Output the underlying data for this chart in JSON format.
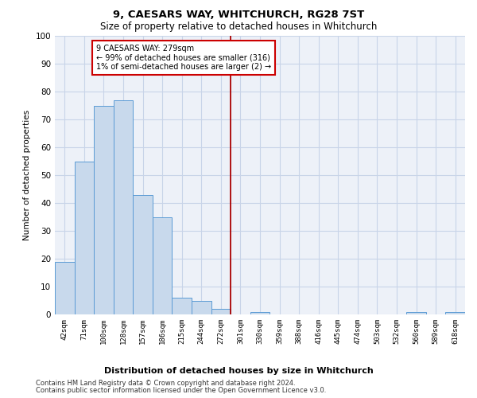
{
  "title1": "9, CAESARS WAY, WHITCHURCH, RG28 7ST",
  "title2": "Size of property relative to detached houses in Whitchurch",
  "xlabel": "Distribution of detached houses by size in Whitchurch",
  "ylabel": "Number of detached properties",
  "bin_labels": [
    "42sqm",
    "71sqm",
    "100sqm",
    "128sqm",
    "157sqm",
    "186sqm",
    "215sqm",
    "244sqm",
    "272sqm",
    "301sqm",
    "330sqm",
    "359sqm",
    "388sqm",
    "416sqm",
    "445sqm",
    "474sqm",
    "503sqm",
    "532sqm",
    "560sqm",
    "589sqm",
    "618sqm"
  ],
  "bar_heights": [
    19,
    55,
    75,
    77,
    43,
    35,
    6,
    5,
    2,
    0,
    1,
    0,
    0,
    0,
    0,
    0,
    0,
    0,
    1,
    0,
    1
  ],
  "bar_color": "#c8d9ec",
  "bar_edge_color": "#5b9bd5",
  "vline_color": "#aa0000",
  "annotation_text": "9 CAESARS WAY: 279sqm\n← 99% of detached houses are smaller (316)\n1% of semi-detached houses are larger (2) →",
  "annotation_box_color": "#ffffff",
  "annotation_box_edge": "#cc0000",
  "ylim": [
    0,
    100
  ],
  "yticks": [
    0,
    10,
    20,
    30,
    40,
    50,
    60,
    70,
    80,
    90,
    100
  ],
  "grid_color": "#c8d4e8",
  "bg_color": "#edf1f8",
  "footer1": "Contains HM Land Registry data © Crown copyright and database right 2024.",
  "footer2": "Contains public sector information licensed under the Open Government Licence v3.0."
}
